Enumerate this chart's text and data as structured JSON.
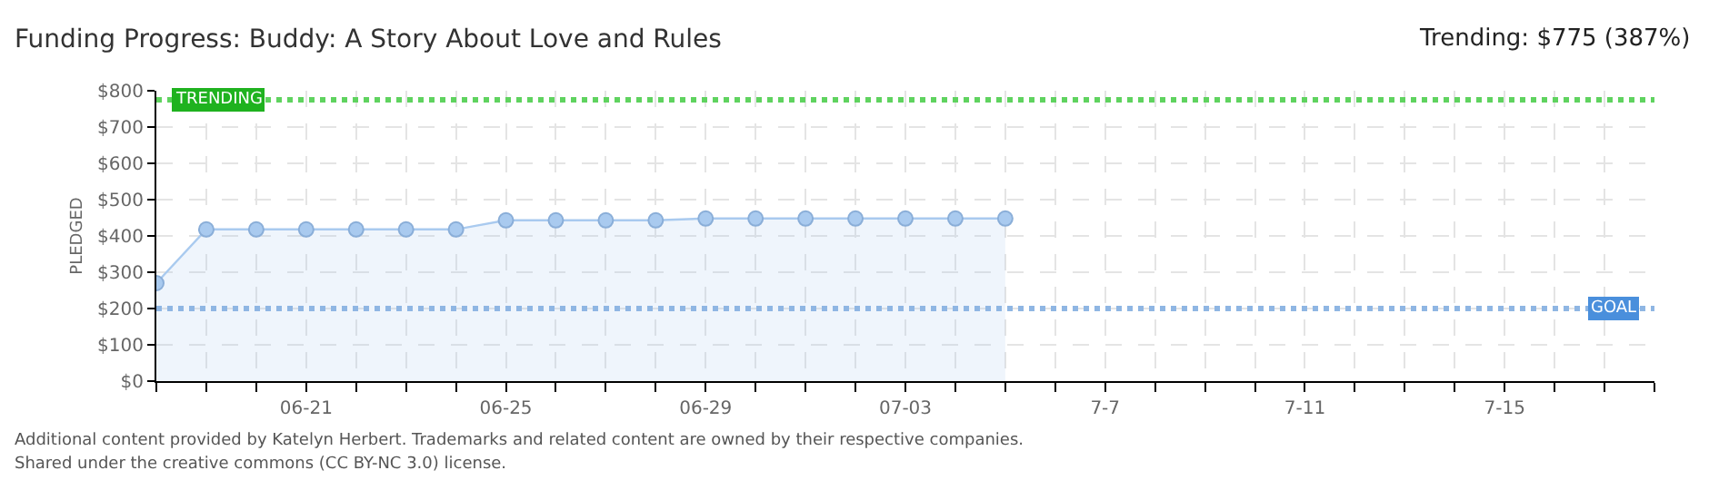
{
  "chart_data": {
    "type": "area",
    "title": "Funding Progress: Buddy: A Story About Love and Rules",
    "subtitle": "Trending: $775 (387%)",
    "ylabel": "PLEDGED",
    "x": [
      "--06-18",
      "--06-19",
      "--06-20",
      "--06-21",
      "--06-22",
      "--06-23",
      "--06-24",
      "--06-25",
      "--06-26",
      "--06-27",
      "--06-28",
      "--06-29",
      "--06-30",
      "--07-01",
      "--07-02",
      "--07-03",
      "--07-04",
      "--07-05"
    ],
    "series": [
      {
        "color": "#a9caef",
        "values": [
          270,
          418,
          418,
          418,
          418,
          418,
          418,
          443,
          443,
          443,
          443,
          448,
          448,
          448,
          448,
          448,
          448,
          448
        ]
      }
    ],
    "xlim": [
      "--06-18",
      "--07-18"
    ],
    "xticks": [
      {
        "value": "--06-18",
        "label": null
      },
      {
        "value": "--06-19",
        "label": null
      },
      {
        "value": "--06-20",
        "label": null
      },
      {
        "value": "--06-21",
        "label": "06-21"
      },
      {
        "value": "--06-22",
        "label": null
      },
      {
        "value": "--06-23",
        "label": null
      },
      {
        "value": "--06-24",
        "label": null
      },
      {
        "value": "--06-25",
        "label": "06-25"
      },
      {
        "value": "--06-26",
        "label": null
      },
      {
        "value": "--06-27",
        "label": null
      },
      {
        "value": "--06-28",
        "label": null
      },
      {
        "value": "--06-29",
        "label": "06-29"
      },
      {
        "value": "--06-30",
        "label": null
      },
      {
        "value": "--07-01",
        "label": null
      },
      {
        "value": "--07-02",
        "label": null
      },
      {
        "value": "--07-03",
        "label": "07-03"
      },
      {
        "value": "--07-04",
        "label": null
      },
      {
        "value": "--07-05",
        "label": null
      },
      {
        "value": "--07-06",
        "label": null
      },
      {
        "value": "--07-07",
        "label": "7-7"
      },
      {
        "value": "--07-08",
        "label": null
      },
      {
        "value": "--07-09",
        "label": null
      },
      {
        "value": "--07-10",
        "label": null
      },
      {
        "value": "--07-11",
        "label": "7-11"
      },
      {
        "value": "--07-12",
        "label": null
      },
      {
        "value": "--07-13",
        "label": null
      },
      {
        "value": "--07-14",
        "label": null
      },
      {
        "value": "--07-15",
        "label": "7-15"
      },
      {
        "value": "--07-16",
        "label": null
      },
      {
        "value": "--07-17",
        "label": null
      },
      {
        "value": "--07-18",
        "label": null
      }
    ],
    "ylim": [
      0,
      800
    ],
    "yticks": [
      {
        "value": 0,
        "label": "$0"
      },
      {
        "value": 100,
        "label": "$100"
      },
      {
        "value": 200,
        "label": "$200"
      },
      {
        "value": 300,
        "label": "$300"
      },
      {
        "value": 400,
        "label": "$400"
      },
      {
        "value": 500,
        "label": "$500"
      },
      {
        "value": 600,
        "label": "$600"
      },
      {
        "value": 700,
        "label": "$700"
      },
      {
        "value": 800,
        "label": "$800"
      }
    ],
    "ref_lines": [
      {
        "axis": "y",
        "value": 775,
        "label": "TRENDING",
        "color": "#5fd35f",
        "line_style": "dotted"
      },
      {
        "axis": "y",
        "value": 200,
        "label": "GOAL",
        "color": "#8fb6e3",
        "line_style": "dotted"
      }
    ],
    "grid": true,
    "marker": "circle",
    "line_style": "solid",
    "annotations": [
      "Additional content provided by Katelyn Herbert. Trademarks and related content are owned by their respective companies.",
      "Shared under the creative commons (CC BY-NC 3.0) license."
    ]
  }
}
